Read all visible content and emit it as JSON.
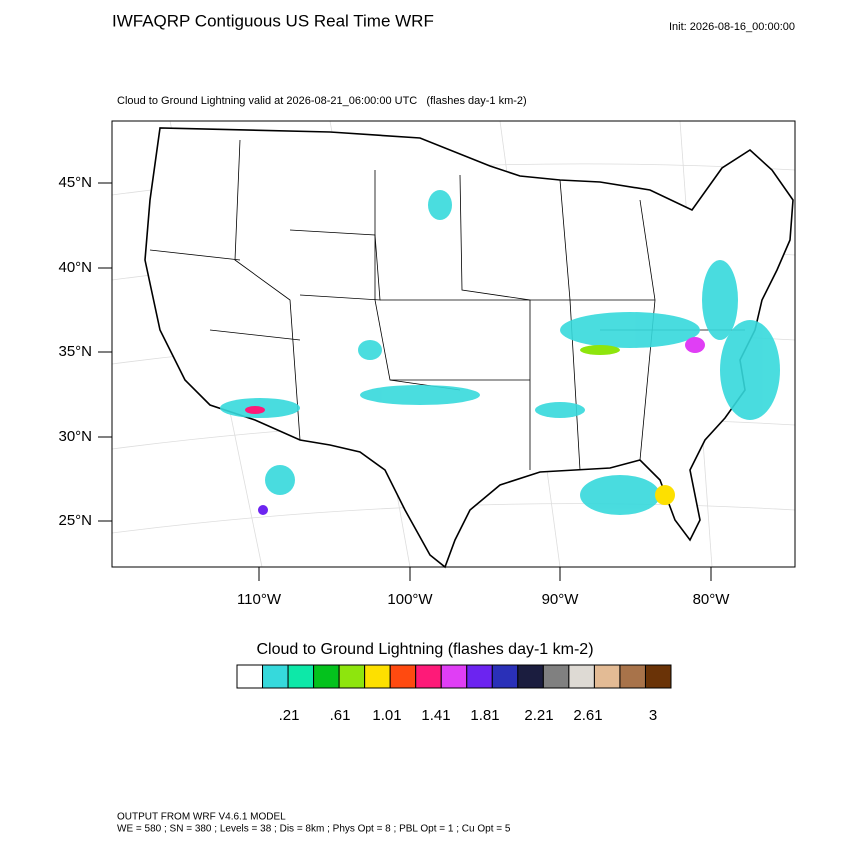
{
  "header": {
    "title": "IWFAQRP Contiguous US Real Time WRF",
    "init": "Init: 2026-08-16_00:00:00"
  },
  "map": {
    "subtitle": "Cloud to Ground Lightning valid at 2026-08-21_06:00:00 UTC   (flashes day-1 km-2)",
    "lat_labels": [
      "45°N",
      "40°N",
      "35°N",
      "30°N",
      "25°N"
    ],
    "lon_labels": [
      "110°W",
      "100°W",
      "90°W",
      "80°W"
    ]
  },
  "colorbar": {
    "title": "Cloud to Ground Lightning  (flashes day-1 km-2)",
    "colors": [
      "#ffffff",
      "#36d9dc",
      "#0de8a8",
      "#04c21d",
      "#8ee50d",
      "#fde000",
      "#ff4a10",
      "#fe1a78",
      "#e03ef5",
      "#6c24f0",
      "#2a30b8",
      "#1b1d3f",
      "#808080",
      "#dedad4",
      "#e3bb95",
      "#a8734a",
      "#6a3307"
    ],
    "labels": [
      ".21",
      ".61",
      "1.01",
      "1.41",
      "1.81",
      "2.21",
      "2.61",
      "3"
    ]
  },
  "footer": {
    "line1": "OUTPUT FROM WRF V4.6.1 MODEL",
    "line2": "WE = 580 ; SN = 380 ; Levels = 38 ; Dis = 8km ; Phys Opt = 8 ; PBL Opt = 1 ; Cu Opt = 5"
  }
}
